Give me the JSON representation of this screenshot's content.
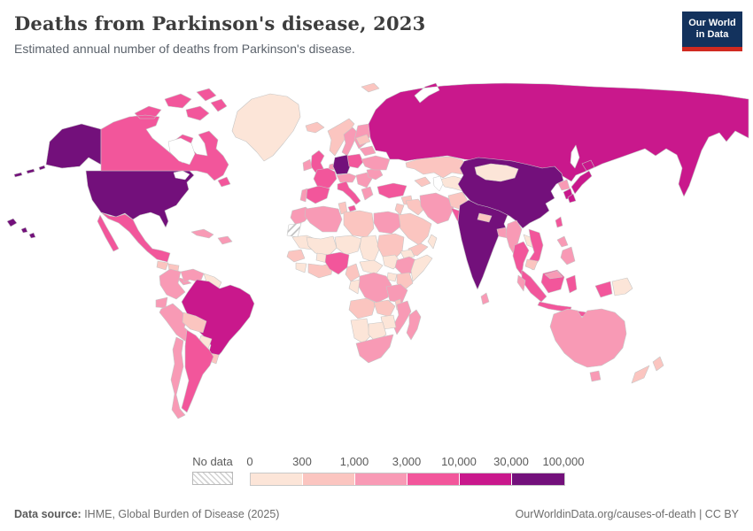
{
  "header": {
    "title": "Deaths from Parkinson's disease, 2023",
    "subtitle": "Estimated annual number of deaths from Parkinson's disease."
  },
  "logo": {
    "line1": "Our World",
    "line2": "in Data",
    "bg_color": "#13325d",
    "bar_color": "#d02a20"
  },
  "legend": {
    "no_data_label": "No data",
    "ticks": [
      "0",
      "300",
      "1,000",
      "3,000",
      "10,000",
      "30,000",
      "100,000"
    ]
  },
  "footer": {
    "source_label": "Data source:",
    "source_rest": " IHME, Global Burden of Disease (2025)",
    "right_text": "OurWorldinData.org/causes-of-death | CC BY"
  },
  "colors": {
    "ocean": "#ffffff",
    "country_border": "#c6c6c6",
    "text_grey": "#5b5b5b"
  },
  "chart_data": {
    "type": "choropleth",
    "title": "Deaths from Parkinson's disease, 2023",
    "unit": "estimated annual deaths",
    "legend_bins": [
      {
        "label": "0-300",
        "color": "#fce5d8"
      },
      {
        "label": "300-1,000",
        "color": "#fbc5c0"
      },
      {
        "label": "1,000-3,000",
        "color": "#f89ab5"
      },
      {
        "label": "3,000-10,000",
        "color": "#f2569b"
      },
      {
        "label": "10,000-30,000",
        "color": "#c9188c"
      },
      {
        "label": "30,000-100,000",
        "color": "#73107b"
      }
    ],
    "no_data_regions": [
      "Western Sahara"
    ],
    "countries": {
      "United States": 5,
      "Canada": 3,
      "Greenland": 0,
      "Mexico": 3,
      "Guatemala": 1,
      "Honduras & Nicaragua": 1,
      "Costa Rica & Panama": 2,
      "Cuba": 2,
      "Hispaniola": 2,
      "Colombia": 2,
      "Venezuela": 2,
      "Guyanas": 0,
      "Ecuador": 2,
      "Peru": 2,
      "Brazil": 4,
      "Bolivia": 1,
      "Paraguay": 0,
      "Uruguay": 1,
      "Argentina": 3,
      "Chile": 2,
      "Iceland": 1,
      "Norway": 1,
      "Sweden": 2,
      "Finland": 2,
      "Denmark": 2,
      "United Kingdom": 3,
      "Ireland": 2,
      "Benelux": 2,
      "Germany": 5,
      "France": 3,
      "Spain": 3,
      "Portugal": 2,
      "Poland": 3,
      "Czechia & Austria": 2,
      "Italy": 3,
      "Balkans": 2,
      "Greece": 2,
      "Romania": 2,
      "Ukraine": 2,
      "Belarus": 2,
      "Baltics": 1,
      "Russia": 4,
      "Svalbard": 1,
      "Kazakhstan": 1,
      "Central Asia": 0,
      "Caucasus": 1,
      "Turkey": 3,
      "Syria": 1,
      "Iraq": 1,
      "Israel & Jordan": 1,
      "Iran": 2,
      "Afghanistan": 1,
      "Pakistan": 3,
      "Saudi Arabia": 1,
      "Yemen": 1,
      "Oman": 0,
      "India": 5,
      "Nepal": 1,
      "Bangladesh": 2,
      "Sri Lanka": 2,
      "Myanmar": 2,
      "Thailand": 3,
      "Laos": 0,
      "Vietnam": 3,
      "Cambodia": 1,
      "Malaysia": 2,
      "Indonesia": 3,
      "Philippines": 2,
      "Taiwan": 3,
      "China": 5,
      "Mongolia": 0,
      "North Korea": 2,
      "South Korea": 4,
      "Japan": 4,
      "Papua New Guinea": 0,
      "Australia": 2,
      "New Zealand": 1,
      "Morocco": 2,
      "Western Sahara": -1,
      "Algeria": 2,
      "Tunisia": 1,
      "Libya": 1,
      "Egypt": 2,
      "Mauritania": 0,
      "Mali": 0,
      "Niger": 0,
      "Chad": 0,
      "Sudan": 1,
      "Senegal & Guinea": 1,
      "Sierra Leone & Liberia": 0,
      "Ghana & Cote d'Ivoire": 1,
      "Burkina Faso": 0,
      "Nigeria": 3,
      "Cameroon": 1,
      "Central African Republic": 0,
      "South Sudan": 0,
      "Eritrea": 0,
      "Ethiopia": 2,
      "Somalia": 0,
      "Kenya": 1,
      "Uganda": 0,
      "DR Congo": 2,
      "Congo & Gabon": 0,
      "Tanzania": 2,
      "Angola": 1,
      "Zambia": 1,
      "Malawi": 1,
      "Mozambique": 2,
      "Zimbabwe": 0,
      "Namibia": 0,
      "Botswana": 0,
      "South Africa": 2,
      "Madagascar": 2
    }
  }
}
